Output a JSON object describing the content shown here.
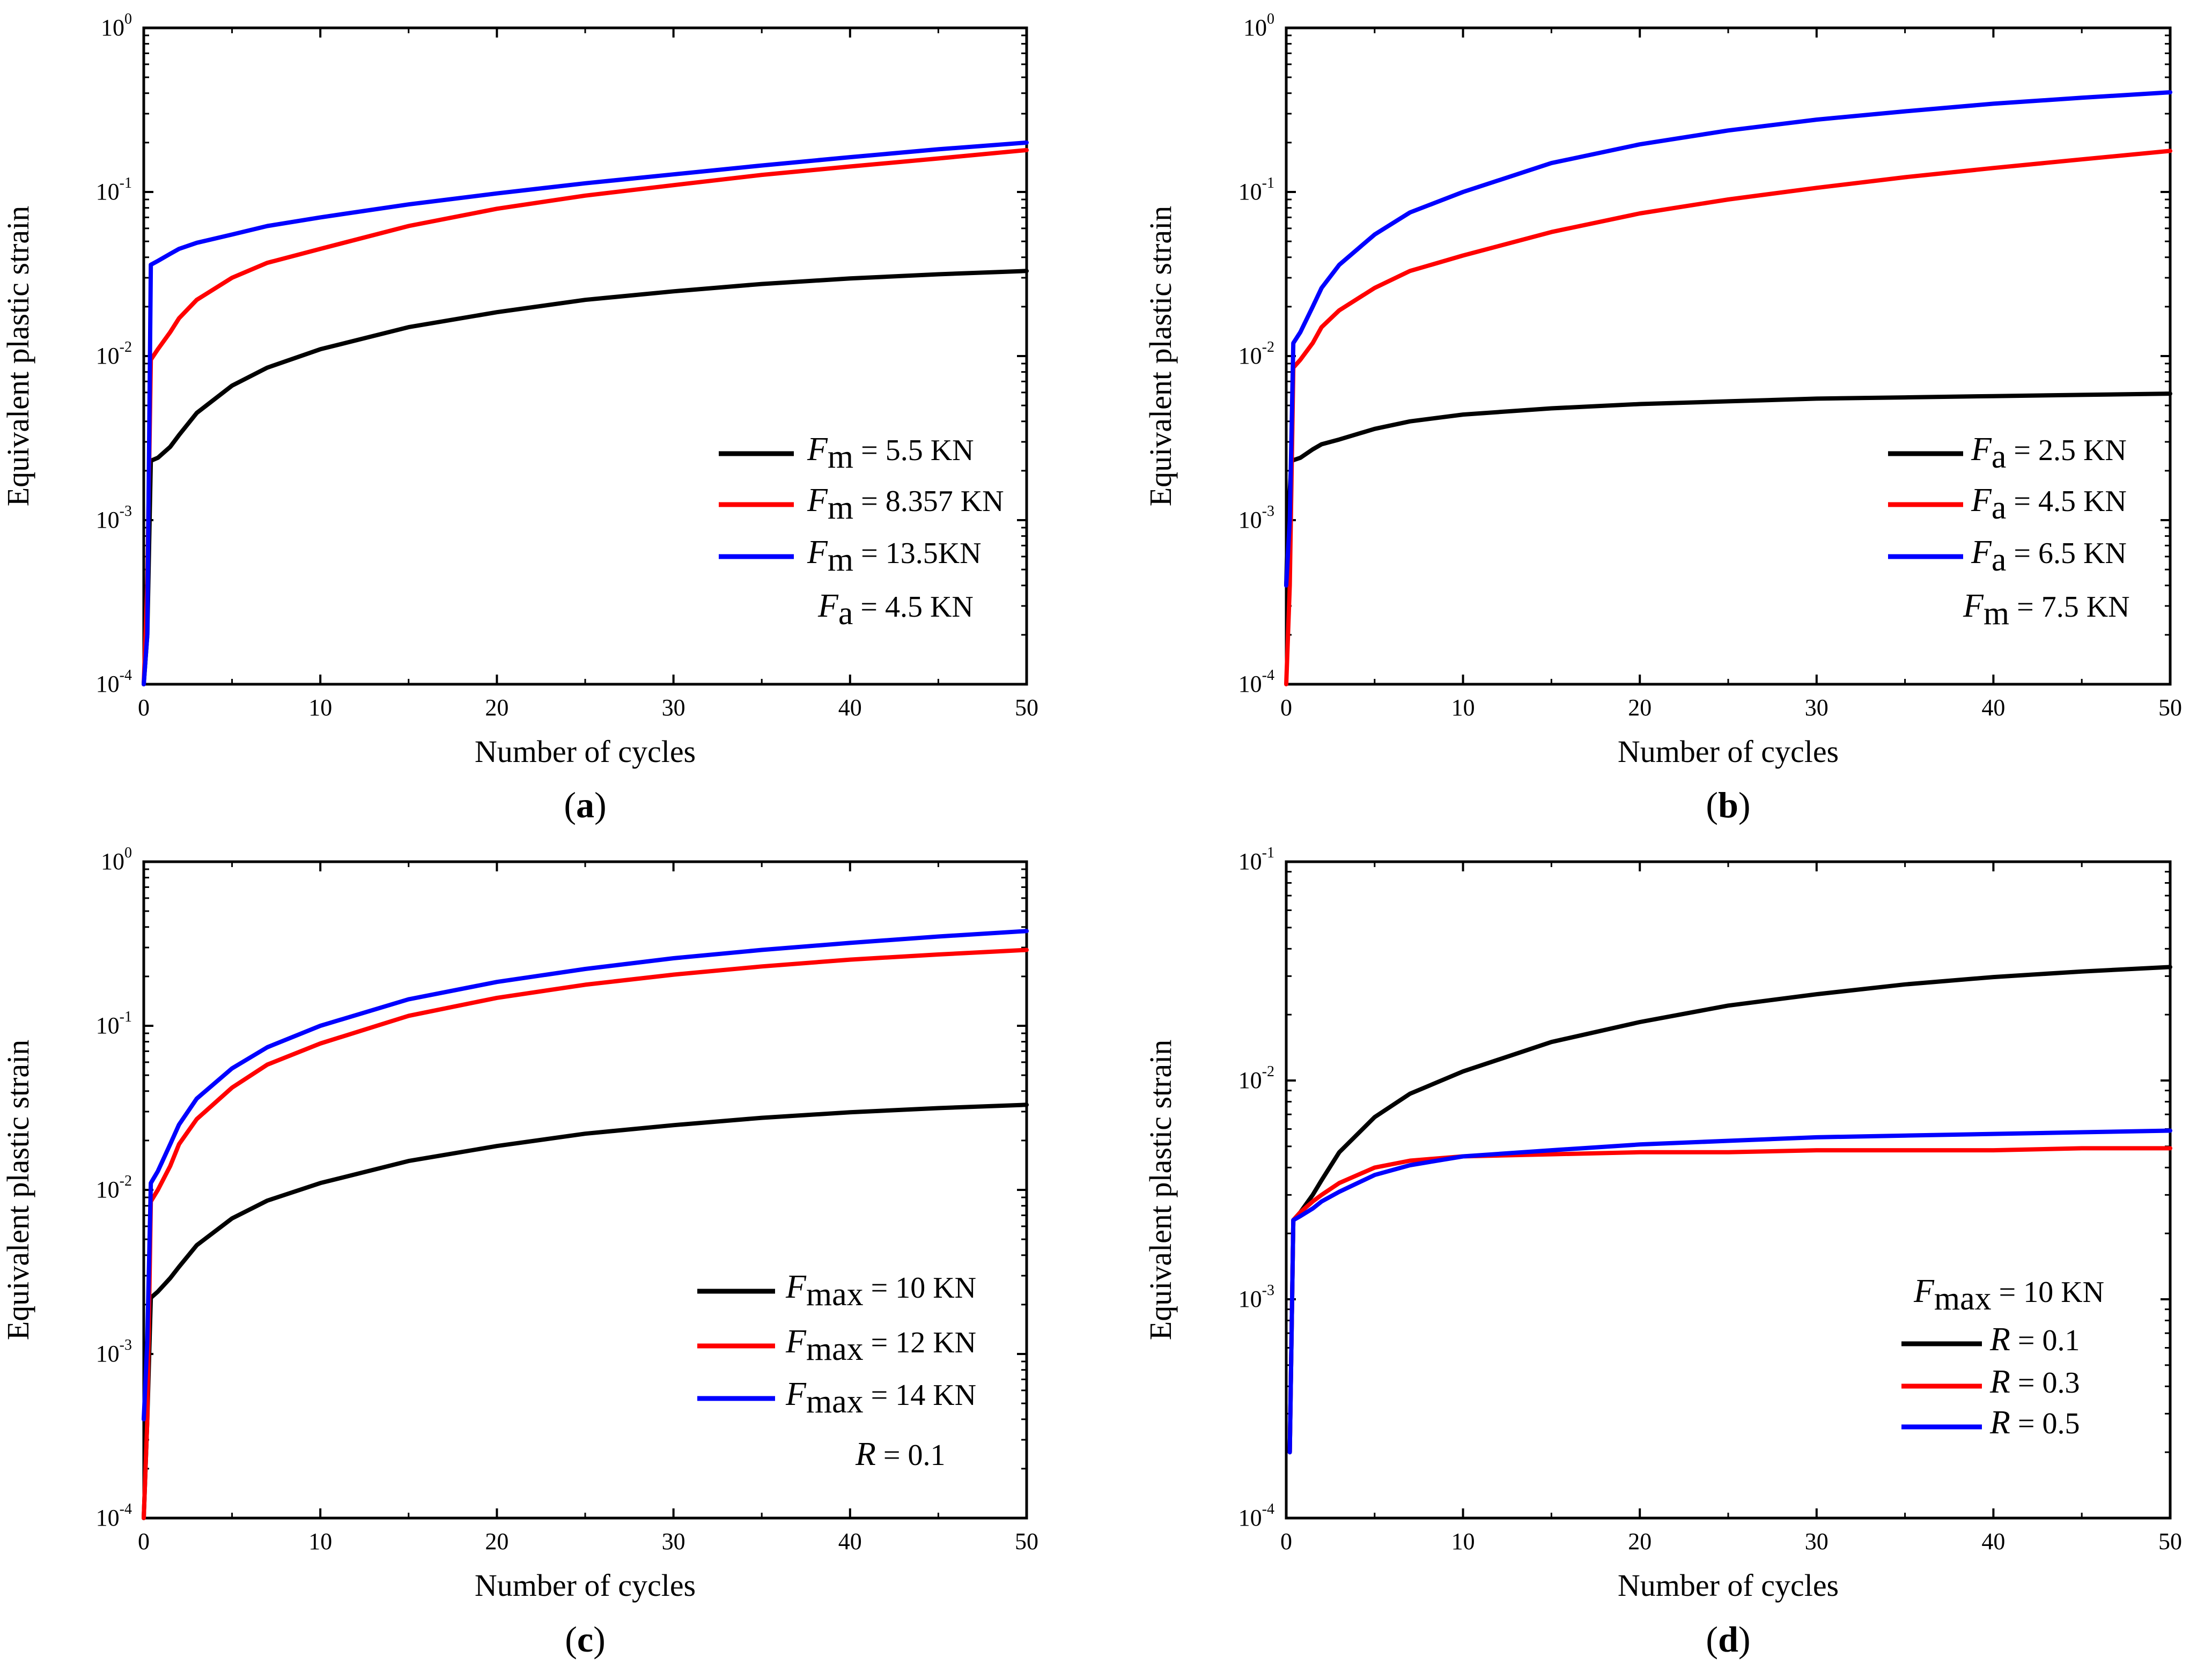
{
  "chart_data": [
    {
      "type": "line",
      "panel": "a",
      "xlabel": "Number of cycles",
      "ylabel": "Equivalent plastic strain",
      "xlim": [
        0,
        50
      ],
      "ylim": [
        0.0001,
        1
      ],
      "yscale": "log",
      "xticks": [
        "0",
        "10",
        "20",
        "30",
        "40",
        "50"
      ],
      "ytick_base": "10",
      "ytick_exponents": [
        "-4",
        "-3",
        "-2",
        "-1",
        "0"
      ],
      "legend_position": "bottom-right",
      "series": [
        {
          "name": "F_m = 5.5 KN",
          "sym": "F",
          "sub": "m",
          "rest": " = 5.5 KN",
          "color": "#000000",
          "x": [
            0,
            0.2,
            0.4,
            0.8,
            1.5,
            2,
            3,
            5,
            7,
            10,
            15,
            20,
            25,
            30,
            35,
            40,
            45,
            50
          ],
          "y": [
            0.0001,
            0.0002,
            0.0023,
            0.0024,
            0.0028,
            0.0033,
            0.0045,
            0.0066,
            0.0085,
            0.011,
            0.015,
            0.0185,
            0.022,
            0.0248,
            0.0275,
            0.0297,
            0.0315,
            0.033
          ]
        },
        {
          "name": "F_m = 8.357 KN",
          "sym": "F",
          "sub": "m",
          "rest": " = 8.357 KN",
          "color": "#ff0000",
          "x": [
            0,
            0.2,
            0.4,
            0.8,
            1.5,
            2,
            3,
            5,
            7,
            10,
            15,
            20,
            25,
            30,
            35,
            40,
            45,
            50
          ],
          "y": [
            0.0001,
            0.0004,
            0.0095,
            0.011,
            0.014,
            0.017,
            0.022,
            0.03,
            0.037,
            0.045,
            0.062,
            0.079,
            0.095,
            0.11,
            0.127,
            0.143,
            0.16,
            0.18
          ]
        },
        {
          "name": "F_m = 13.5KN",
          "sym": "F",
          "sub": "m",
          "rest": " = 13.5KN",
          "color": "#0000ff",
          "x": [
            0,
            0.2,
            0.4,
            0.8,
            1.5,
            2,
            3,
            5,
            7,
            10,
            15,
            20,
            25,
            30,
            35,
            40,
            45,
            50
          ],
          "y": [
            0.0001,
            0.0002,
            0.036,
            0.038,
            0.042,
            0.045,
            0.049,
            0.055,
            0.062,
            0.07,
            0.084,
            0.098,
            0.113,
            0.128,
            0.145,
            0.163,
            0.182,
            0.2
          ]
        }
      ],
      "annotation": {
        "sym": "F",
        "sub": "a",
        "rest": " = 4.5 KN"
      }
    },
    {
      "type": "line",
      "panel": "b",
      "xlabel": "Number of cycles",
      "ylabel": "Equivalent plastic strain",
      "xlim": [
        0,
        50
      ],
      "ylim": [
        0.0001,
        1
      ],
      "yscale": "log",
      "xticks": [
        "0",
        "10",
        "20",
        "30",
        "40",
        "50"
      ],
      "ytick_base": "10",
      "ytick_exponents": [
        "-4",
        "-3",
        "-2",
        "-1",
        "0"
      ],
      "legend_position": "bottom-right",
      "series": [
        {
          "name": "F_a = 2.5 KN",
          "sym": "F",
          "sub": "a",
          "rest": " = 2.5 KN",
          "color": "#000000",
          "x": [
            0,
            0.1,
            0.3,
            0.8,
            1.5,
            2,
            3,
            5,
            7,
            10,
            15,
            20,
            25,
            30,
            35,
            40,
            45,
            50
          ],
          "y": [
            0.0004,
            0.001,
            0.0023,
            0.0024,
            0.0027,
            0.0029,
            0.0031,
            0.0036,
            0.004,
            0.0044,
            0.0048,
            0.0051,
            0.0053,
            0.0055,
            0.0056,
            0.0057,
            0.0058,
            0.0059
          ]
        },
        {
          "name": "F_a = 4.5 KN",
          "sym": "F",
          "sub": "a",
          "rest": " = 4.5 KN",
          "color": "#ff0000",
          "x": [
            0,
            0.2,
            0.4,
            0.8,
            1.5,
            2,
            3,
            5,
            7,
            10,
            15,
            20,
            25,
            30,
            35,
            40,
            45,
            50
          ],
          "y": [
            0.0001,
            0.0004,
            0.0085,
            0.0095,
            0.012,
            0.015,
            0.019,
            0.026,
            0.033,
            0.041,
            0.057,
            0.074,
            0.09,
            0.106,
            0.123,
            0.14,
            0.158,
            0.178
          ]
        },
        {
          "name": "F_a = 6.5 KN",
          "sym": "F",
          "sub": "a",
          "rest": " = 6.5 KN",
          "color": "#0000ff",
          "x": [
            0,
            0.2,
            0.4,
            0.8,
            1.5,
            2,
            3,
            5,
            7,
            10,
            15,
            20,
            25,
            30,
            35,
            40,
            45,
            50
          ],
          "y": [
            0.0004,
            0.001,
            0.012,
            0.014,
            0.02,
            0.026,
            0.036,
            0.055,
            0.075,
            0.1,
            0.15,
            0.195,
            0.237,
            0.276,
            0.31,
            0.345,
            0.375,
            0.405
          ]
        }
      ],
      "annotation": {
        "sym": "F",
        "sub": "m",
        "rest": " = 7.5 KN"
      }
    },
    {
      "type": "line",
      "panel": "c",
      "xlabel": "Number of cycles",
      "ylabel": "Equivalent plastic strain",
      "xlim": [
        0,
        50
      ],
      "ylim": [
        0.0001,
        1
      ],
      "yscale": "log",
      "xticks": [
        "0",
        "10",
        "20",
        "30",
        "40",
        "50"
      ],
      "ytick_base": "10",
      "ytick_exponents": [
        "-4",
        "-3",
        "-2",
        "-1",
        "0"
      ],
      "legend_position": "bottom-right",
      "series": [
        {
          "name": "F_max = 10 KN",
          "sym": "F",
          "sub": "max",
          "rest": " = 10 KN",
          "color": "#000000",
          "x": [
            0,
            0.2,
            0.4,
            0.8,
            1.5,
            2,
            3,
            5,
            7,
            10,
            15,
            20,
            25,
            30,
            35,
            40,
            45,
            50
          ],
          "y": [
            0.0001,
            0.0004,
            0.0022,
            0.0024,
            0.0029,
            0.0034,
            0.0046,
            0.0067,
            0.0086,
            0.011,
            0.015,
            0.0185,
            0.022,
            0.0248,
            0.0275,
            0.0297,
            0.0315,
            0.033
          ]
        },
        {
          "name": "F_max = 12 KN",
          "sym": "F",
          "sub": "max",
          "rest": " = 12 KN",
          "color": "#ff0000",
          "x": [
            0,
            0.2,
            0.4,
            0.8,
            1.5,
            2,
            3,
            5,
            7,
            10,
            15,
            20,
            25,
            30,
            35,
            40,
            45,
            50
          ],
          "y": [
            0.0001,
            0.0004,
            0.0085,
            0.01,
            0.014,
            0.019,
            0.027,
            0.042,
            0.058,
            0.078,
            0.115,
            0.148,
            0.178,
            0.205,
            0.23,
            0.253,
            0.272,
            0.29
          ]
        },
        {
          "name": "F_max = 14 KN",
          "sym": "F",
          "sub": "max",
          "rest": " = 14 KN",
          "color": "#0000ff",
          "x": [
            0,
            0.2,
            0.4,
            0.8,
            1.5,
            2,
            3,
            5,
            7,
            10,
            15,
            20,
            25,
            30,
            35,
            40,
            45,
            50
          ],
          "y": [
            0.0004,
            0.0012,
            0.011,
            0.013,
            0.019,
            0.025,
            0.036,
            0.055,
            0.074,
            0.1,
            0.145,
            0.185,
            0.222,
            0.258,
            0.29,
            0.32,
            0.35,
            0.378
          ]
        }
      ],
      "annotation": {
        "sym": "R",
        "sub": "",
        "rest": " = 0.1"
      }
    },
    {
      "type": "line",
      "panel": "d",
      "xlabel": "Number of cycles",
      "ylabel": "Equivalent plastic strain",
      "xlim": [
        0,
        50
      ],
      "ylim": [
        0.0001,
        0.1
      ],
      "yscale": "log",
      "xticks": [
        "0",
        "10",
        "20",
        "30",
        "40",
        "50"
      ],
      "ytick_base": "10",
      "ytick_exponents": [
        "-4",
        "-3",
        "-2",
        "-1"
      ],
      "legend_position": "bottom-right",
      "legend_title": {
        "sym": "F",
        "sub": "max",
        "rest": " = 10 KN"
      },
      "series": [
        {
          "name": "R = 0.1",
          "sym": "R",
          "sub": "",
          "rest": " = 0.1",
          "color": "#000000",
          "x": [
            0.2,
            0.4,
            0.8,
            1.5,
            2,
            3,
            5,
            7,
            10,
            15,
            20,
            25,
            30,
            35,
            40,
            45,
            50
          ],
          "y": [
            0.0002,
            0.0023,
            0.0025,
            0.003,
            0.0035,
            0.0047,
            0.0068,
            0.0087,
            0.011,
            0.015,
            0.0185,
            0.022,
            0.0248,
            0.0275,
            0.0297,
            0.0315,
            0.033
          ]
        },
        {
          "name": "R = 0.3",
          "sym": "R",
          "sub": "",
          "rest": " = 0.3",
          "color": "#ff0000",
          "x": [
            0.2,
            0.4,
            0.8,
            1.5,
            2,
            3,
            5,
            7,
            10,
            15,
            20,
            25,
            30,
            35,
            40,
            45,
            50
          ],
          "y": [
            0.0002,
            0.0023,
            0.0025,
            0.0028,
            0.003,
            0.0034,
            0.004,
            0.0043,
            0.0045,
            0.0046,
            0.0047,
            0.0047,
            0.0048,
            0.0048,
            0.0048,
            0.0049,
            0.0049
          ]
        },
        {
          "name": "R = 0.5",
          "sym": "R",
          "sub": "",
          "rest": " = 0.5",
          "color": "#0000ff",
          "x": [
            0.2,
            0.4,
            0.8,
            1.5,
            2,
            3,
            5,
            7,
            10,
            15,
            20,
            25,
            30,
            35,
            40,
            45,
            50
          ],
          "y": [
            0.0002,
            0.0023,
            0.0024,
            0.0026,
            0.0028,
            0.0031,
            0.0037,
            0.0041,
            0.0045,
            0.0048,
            0.0051,
            0.0053,
            0.0055,
            0.0056,
            0.0057,
            0.0058,
            0.0059
          ]
        }
      ]
    }
  ],
  "panel_labels": [
    "a",
    "b",
    "c",
    "d"
  ]
}
